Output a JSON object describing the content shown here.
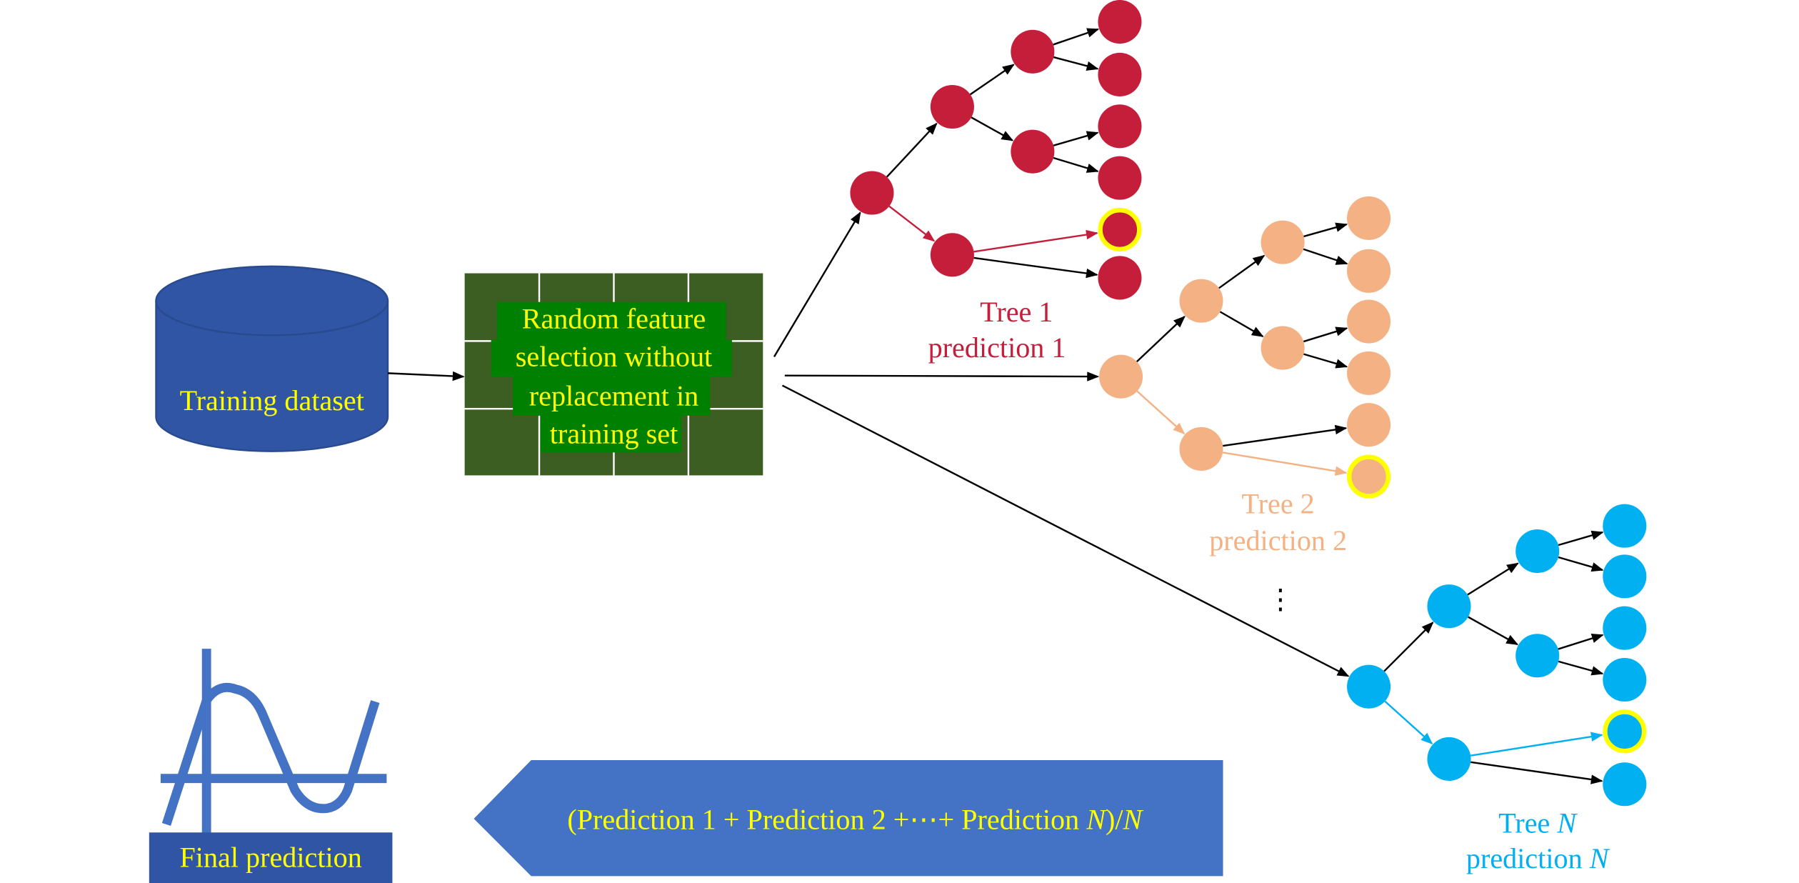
{
  "colors": {
    "dataset": "#2f55a4",
    "grid": "#3d5e23",
    "grid_text_bg": "#008000",
    "text_yellow": "#ffff00",
    "tree1": "#c41e3a",
    "tree2": "#f4b183",
    "treeN": "#00b0f0",
    "highlight": "#ffff00",
    "aggregate": "#4472c4",
    "final_box": "#2f55a4"
  },
  "dataset": {
    "label": "Training dataset"
  },
  "feature_selection": {
    "lines": [
      "Random feature",
      "selection without",
      "replacement in",
      "training set"
    ]
  },
  "trees": [
    {
      "title": "Tree 1",
      "prediction": "prediction 1"
    },
    {
      "title": "Tree 2",
      "prediction": "prediction 2"
    },
    {
      "title_prefix": "Tree ",
      "title_var": "N",
      "prediction_prefix": "prediction ",
      "prediction_var": "N"
    }
  ],
  "ellipsis": "⋮",
  "aggregate": {
    "part1": "(Prediction 1 + Prediction 2 +⋯+ Prediction ",
    "var1": "N",
    "part2": ")/",
    "var2": "N"
  },
  "final": {
    "label": "Final prediction",
    "icon": "sine-wave-chart-icon"
  }
}
